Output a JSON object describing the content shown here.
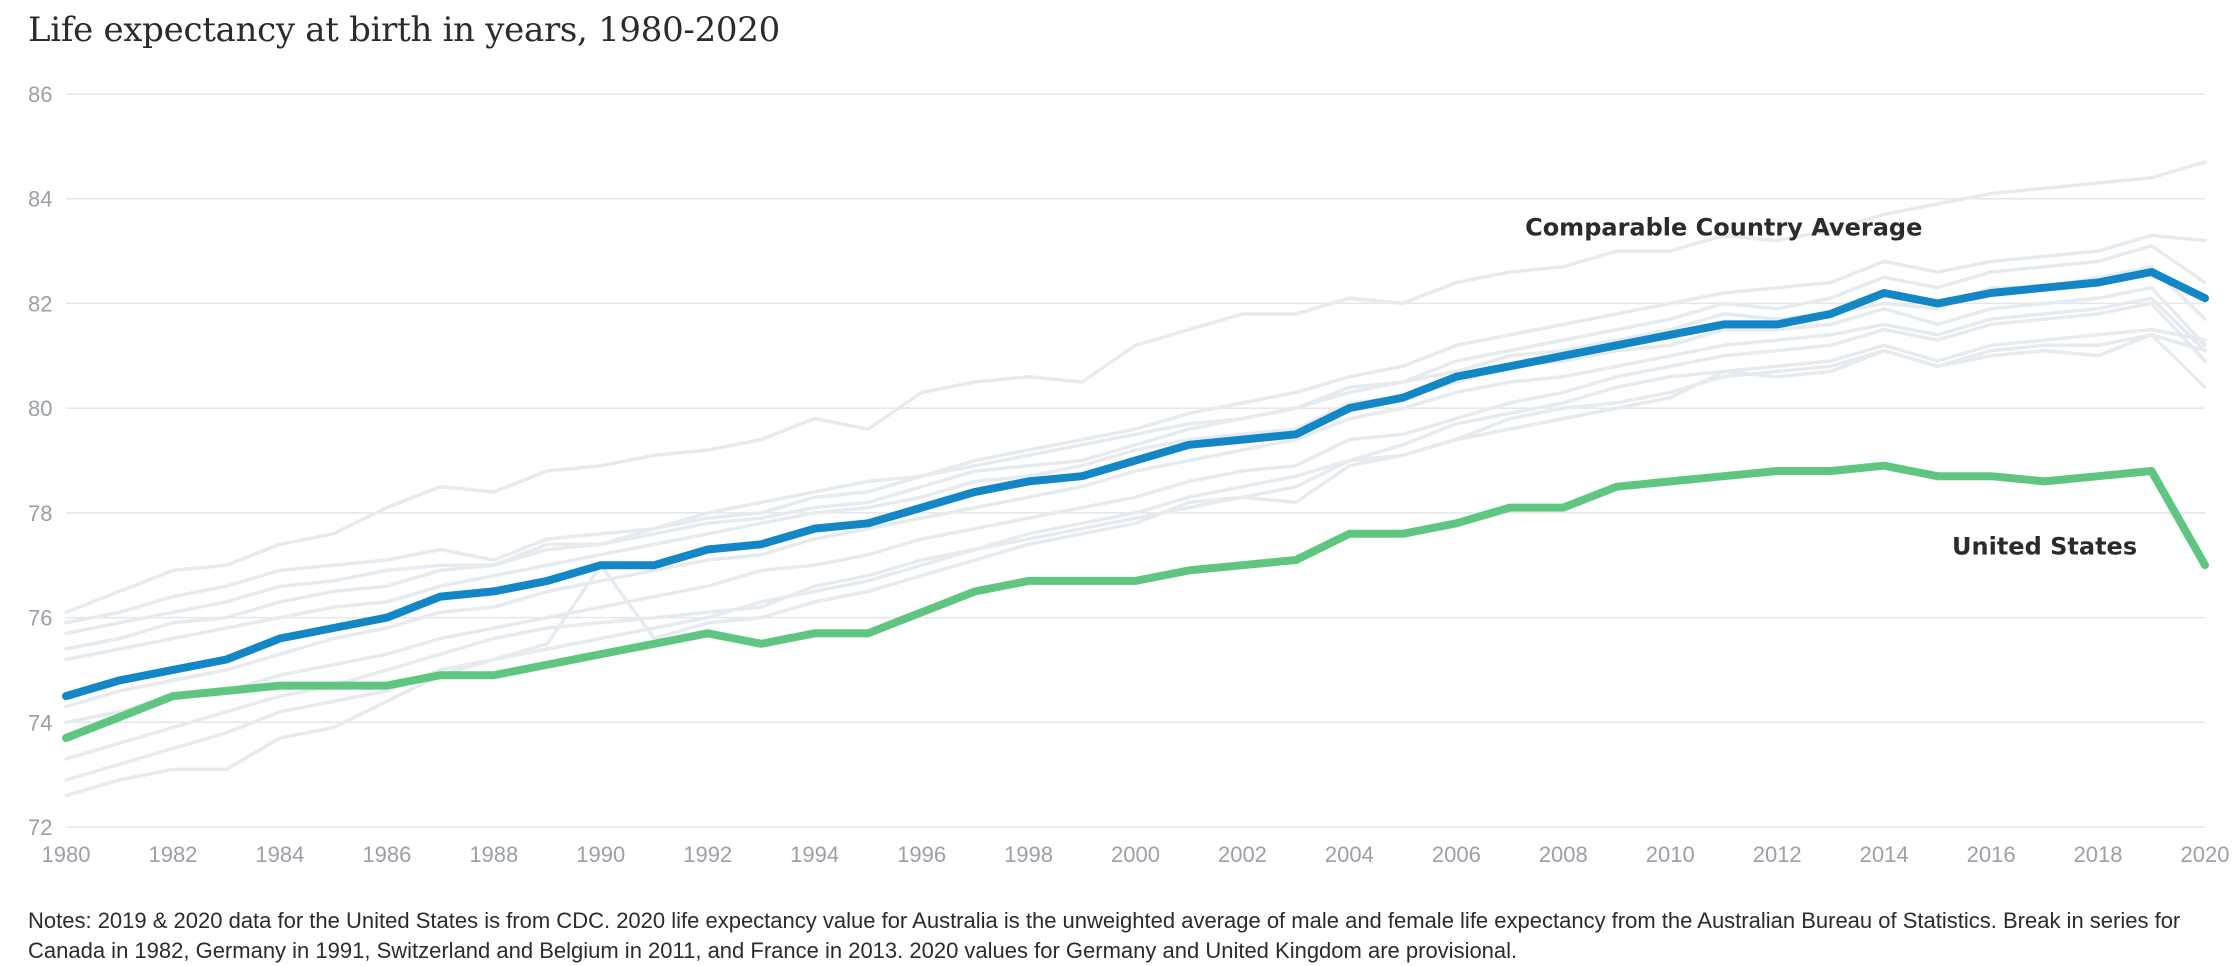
{
  "title": "Life expectancy at birth in years, 1980-2020",
  "notes": "Notes: 2019 & 2020 data for the United States is from CDC. 2020 life expectancy value for Australia is the unweighted average of male and female life expectancy from the Australian Bureau of Statistics. Break in series for Canada in 1982, Germany in 1991, Switzerland and Belgium in 2011, and France in 2013. 2020 values for Germany and United Kingdom are provisional.",
  "colors": {
    "comparable_average": "#1386c5",
    "united_states": "#5ec680",
    "background_countries": "#e6ebf0",
    "gridline": "#e3e6ea",
    "tick_label": "#9aa0a6"
  },
  "chart_data": {
    "type": "line",
    "title": "Life expectancy at birth in years, 1980-2020",
    "xlabel": "",
    "ylabel": "",
    "xlim": [
      1980,
      2020
    ],
    "ylim": [
      72,
      86
    ],
    "x_ticks": [
      1980,
      1982,
      1984,
      1986,
      1988,
      1990,
      1992,
      1994,
      1996,
      1998,
      2000,
      2002,
      2004,
      2006,
      2008,
      2010,
      2012,
      2014,
      2016,
      2018,
      2020
    ],
    "y_ticks": [
      72,
      74,
      76,
      78,
      80,
      82,
      84,
      86
    ],
    "grid": true,
    "x": [
      1980,
      1981,
      1982,
      1983,
      1984,
      1985,
      1986,
      1987,
      1988,
      1989,
      1990,
      1991,
      1992,
      1993,
      1994,
      1995,
      1996,
      1997,
      1998,
      1999,
      2000,
      2001,
      2002,
      2003,
      2004,
      2005,
      2006,
      2007,
      2008,
      2009,
      2010,
      2011,
      2012,
      2013,
      2014,
      2015,
      2016,
      2017,
      2018,
      2019,
      2020
    ],
    "series": [
      {
        "name": "Comparable Country Average",
        "role": "highlight",
        "values": [
          74.5,
          74.8,
          75.0,
          75.2,
          75.6,
          75.8,
          76.0,
          76.4,
          76.5,
          76.7,
          77.0,
          77.0,
          77.3,
          77.4,
          77.7,
          77.8,
          78.1,
          78.4,
          78.6,
          78.7,
          79.0,
          79.3,
          79.4,
          79.5,
          80.0,
          80.2,
          80.6,
          80.8,
          81.0,
          81.2,
          81.4,
          81.6,
          81.6,
          81.8,
          82.2,
          82.0,
          82.2,
          82.3,
          82.4,
          82.6,
          82.1
        ]
      },
      {
        "name": "United States",
        "role": "highlight",
        "values": [
          73.7,
          74.1,
          74.5,
          74.6,
          74.7,
          74.7,
          74.7,
          74.9,
          74.9,
          75.1,
          75.3,
          75.5,
          75.7,
          75.5,
          75.7,
          75.7,
          76.1,
          76.5,
          76.7,
          76.7,
          76.7,
          76.9,
          77.0,
          77.1,
          77.6,
          77.6,
          77.8,
          78.1,
          78.1,
          78.5,
          78.6,
          78.7,
          78.8,
          78.8,
          78.9,
          78.7,
          78.7,
          78.6,
          78.7,
          78.8,
          77.0
        ]
      }
    ],
    "background_series": [
      [
        76.1,
        76.5,
        76.9,
        77.0,
        77.4,
        77.6,
        78.1,
        78.5,
        78.4,
        78.8,
        78.9,
        79.1,
        79.2,
        79.4,
        79.8,
        79.6,
        80.3,
        80.5,
        80.6,
        80.5,
        81.2,
        81.5,
        81.8,
        81.8,
        82.1,
        82.0,
        82.4,
        82.6,
        82.7,
        83.0,
        83.0,
        83.3,
        83.2,
        83.4,
        83.7,
        83.9,
        84.1,
        84.2,
        84.3,
        84.4,
        84.7
      ],
      [
        75.9,
        76.1,
        76.4,
        76.6,
        76.9,
        77.0,
        77.1,
        77.3,
        77.1,
        77.5,
        77.6,
        77.7,
        77.9,
        78.0,
        78.3,
        78.4,
        78.7,
        79.0,
        79.2,
        79.4,
        79.6,
        79.9,
        80.1,
        80.3,
        80.6,
        80.8,
        81.2,
        81.4,
        81.6,
        81.8,
        82.0,
        82.2,
        82.3,
        82.4,
        82.8,
        82.6,
        82.8,
        82.9,
        83.0,
        83.3,
        83.2
      ],
      [
        75.7,
        75.9,
        76.1,
        76.3,
        76.6,
        76.7,
        76.9,
        77.0,
        77.0,
        77.4,
        77.4,
        77.6,
        77.8,
        77.9,
        78.1,
        78.2,
        78.5,
        78.8,
        78.9,
        79.0,
        79.3,
        79.6,
        79.8,
        80.0,
        80.3,
        80.5,
        80.9,
        81.1,
        81.3,
        81.5,
        81.7,
        82.0,
        81.9,
        82.1,
        82.5,
        82.3,
        82.6,
        82.7,
        82.8,
        83.1,
        82.4
      ],
      [
        75.4,
        75.6,
        75.9,
        76.0,
        76.3,
        76.5,
        76.6,
        76.9,
        77.0,
        77.3,
        77.4,
        77.7,
        78.0,
        78.2,
        78.4,
        78.6,
        78.7,
        78.9,
        79.1,
        79.3,
        79.5,
        79.7,
        79.8,
        80.0,
        80.4,
        80.5,
        80.7,
        81.0,
        81.1,
        81.3,
        81.5,
        81.8,
        81.7,
        81.8,
        82.0,
        81.9,
        82.3,
        82.3,
        82.5,
        82.7,
        81.7
      ],
      [
        75.2,
        75.4,
        75.6,
        75.8,
        76.0,
        76.2,
        76.3,
        76.6,
        76.8,
        77.0,
        77.2,
        77.4,
        77.6,
        77.8,
        78.0,
        78.1,
        78.3,
        78.6,
        78.7,
        78.9,
        79.2,
        79.4,
        79.5,
        79.6,
        80.1,
        80.2,
        80.5,
        80.8,
        80.9,
        81.1,
        81.2,
        81.5,
        81.5,
        81.6,
        81.9,
        81.6,
        81.9,
        82.0,
        82.1,
        82.3,
        81.2
      ],
      [
        74.3,
        74.6,
        74.8,
        75.0,
        75.3,
        75.6,
        75.8,
        76.1,
        76.2,
        76.5,
        76.7,
        76.9,
        77.1,
        77.2,
        77.5,
        77.7,
        77.9,
        78.1,
        78.3,
        78.5,
        78.8,
        79.0,
        79.2,
        79.4,
        79.8,
        80.0,
        80.3,
        80.5,
        80.6,
        80.8,
        81.0,
        81.2,
        81.3,
        81.4,
        81.6,
        81.4,
        81.7,
        81.8,
        81.9,
        82.1,
        81.1
      ],
      [
        74.0,
        74.2,
        74.5,
        74.6,
        74.9,
        75.1,
        75.3,
        75.6,
        75.8,
        76.0,
        76.2,
        76.4,
        76.6,
        76.9,
        77.0,
        77.2,
        77.5,
        77.7,
        77.9,
        78.1,
        78.3,
        78.6,
        78.8,
        78.9,
        79.4,
        79.5,
        79.8,
        80.1,
        80.3,
        80.6,
        80.8,
        81.0,
        81.1,
        81.2,
        81.5,
        81.3,
        81.6,
        81.7,
        81.8,
        82.0,
        80.9
      ],
      [
        73.3,
        73.6,
        73.9,
        74.2,
        74.5,
        74.7,
        75.0,
        75.3,
        75.6,
        75.8,
        75.9,
        76.0,
        76.1,
        76.2,
        76.6,
        76.8,
        77.1,
        77.3,
        77.6,
        77.8,
        78.0,
        78.3,
        78.5,
        78.7,
        79.0,
        79.3,
        79.7,
        79.9,
        80.1,
        80.4,
        80.6,
        80.7,
        80.8,
        80.9,
        81.2,
        80.9,
        81.2,
        81.3,
        81.4,
        81.5,
        81.3
      ],
      [
        72.9,
        73.2,
        73.5,
        73.8,
        74.2,
        74.4,
        74.6,
        75.0,
        75.2,
        75.4,
        75.6,
        75.8,
        76.0,
        76.3,
        76.5,
        76.7,
        77.0,
        77.3,
        77.5,
        77.7,
        77.9,
        78.1,
        78.3,
        78.5,
        79.0,
        79.1,
        79.4,
        79.8,
        80.0,
        80.1,
        80.3,
        80.6,
        80.7,
        80.8,
        81.1,
        80.8,
        81.1,
        81.2,
        81.2,
        81.4,
        80.4
      ],
      [
        72.6,
        72.9,
        73.1,
        73.1,
        73.7,
        73.9,
        74.4,
        74.9,
        75.2,
        75.5,
        77.0,
        75.6,
        75.9,
        76.0,
        76.3,
        76.5,
        76.8,
        77.1,
        77.4,
        77.6,
        77.8,
        78.2,
        78.3,
        78.2,
        78.9,
        79.1,
        79.4,
        79.6,
        79.8,
        80.0,
        80.2,
        80.7,
        80.6,
        80.7,
        81.1,
        80.8,
        81.0,
        81.1,
        81.0,
        81.4,
        81.1
      ]
    ],
    "annotations": [
      {
        "text": "Comparable Country Average",
        "x": 2011,
        "y": 83.3
      },
      {
        "text": "United States",
        "x": 2017,
        "y": 77.2
      }
    ]
  }
}
